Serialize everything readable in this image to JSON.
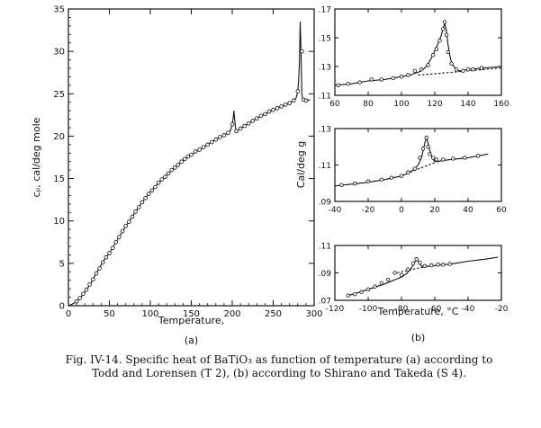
{
  "chart_data": [
    {
      "type": "line",
      "panel_label": "(a)",
      "xlabel": "Temperature,",
      "ylabel": "cₚ, cal/deg mole",
      "xlim": [
        0,
        300
      ],
      "ylim": [
        0,
        35
      ],
      "xticks": [
        0,
        50,
        100,
        150,
        200,
        250,
        300
      ],
      "yticks": [
        0,
        5,
        10,
        15,
        20,
        25,
        30,
        35
      ],
      "grid": false,
      "series": [
        {
          "style": "curve",
          "x": [
            0,
            5,
            10,
            15,
            20,
            25,
            30,
            35,
            40,
            45,
            50,
            55,
            60,
            65,
            70,
            75,
            80,
            85,
            90,
            95,
            100,
            110,
            120,
            130,
            140,
            150,
            160,
            170,
            180,
            190,
            195,
            198,
            200,
            201,
            202,
            203,
            204,
            205,
            207,
            210,
            220,
            230,
            240,
            250,
            260,
            270,
            275,
            278,
            280,
            281,
            282,
            283,
            284,
            285,
            286,
            287,
            288,
            290,
            295
          ],
          "y": [
            0,
            0.2,
            0.5,
            1.0,
            1.6,
            2.3,
            3.1,
            4.0,
            4.8,
            5.6,
            6.2,
            7.0,
            7.8,
            8.6,
            9.4,
            10.1,
            10.8,
            11.5,
            12.2,
            12.8,
            13.4,
            14.5,
            15.4,
            16.3,
            17.1,
            17.8,
            18.4,
            19.0,
            19.6,
            20.1,
            20.4,
            20.7,
            21.4,
            22.0,
            23.0,
            22.0,
            21.0,
            20.6,
            20.7,
            20.9,
            21.5,
            22.1,
            22.6,
            23.1,
            23.5,
            23.9,
            24.2,
            24.5,
            25.3,
            26.5,
            28.5,
            33.5,
            30.0,
            25.0,
            24.4,
            24.3,
            24.2,
            24.2,
            24.3
          ]
        },
        {
          "style": "points",
          "x": [
            10,
            14,
            18,
            22,
            26,
            30,
            34,
            38,
            42,
            46,
            50,
            54,
            58,
            62,
            66,
            70,
            74,
            78,
            82,
            86,
            90,
            94,
            98,
            102,
            106,
            110,
            114,
            118,
            122,
            126,
            130,
            134,
            138,
            142,
            146,
            150,
            155,
            160,
            165,
            170,
            175,
            180,
            185,
            190,
            195,
            200,
            205,
            210,
            215,
            220,
            225,
            230,
            235,
            240,
            245,
            250,
            255,
            260,
            265,
            270,
            275,
            280,
            285,
            287,
            290
          ],
          "y": [
            0.5,
            0.9,
            1.4,
            1.9,
            2.5,
            3.1,
            3.8,
            4.4,
            5.1,
            5.7,
            6.2,
            6.8,
            7.5,
            8.1,
            8.8,
            9.4,
            9.9,
            10.5,
            11.1,
            11.6,
            12.2,
            12.7,
            13.2,
            13.6,
            14.0,
            14.5,
            14.9,
            15.2,
            15.6,
            16.0,
            16.3,
            16.6,
            17.0,
            17.3,
            17.6,
            17.8,
            18.2,
            18.4,
            18.7,
            19.0,
            19.3,
            19.6,
            19.9,
            20.1,
            20.4,
            21.4,
            20.6,
            20.9,
            21.2,
            21.5,
            21.8,
            22.1,
            22.4,
            22.6,
            22.9,
            23.1,
            23.3,
            23.5,
            23.7,
            23.9,
            24.2,
            25.3,
            30.0,
            24.3,
            24.2
          ]
        }
      ]
    },
    {
      "type": "line",
      "panel_label": "",
      "xlabel": "",
      "ylabel": "",
      "xlim": [
        60,
        160
      ],
      "ylim": [
        0.11,
        0.17
      ],
      "xticks": [
        60,
        80,
        100,
        120,
        140,
        160
      ],
      "yticks": [
        0.11,
        0.13,
        0.15,
        0.17
      ],
      "grid": false,
      "series": [
        {
          "style": "curve",
          "x": [
            60,
            70,
            80,
            90,
            100,
            105,
            110,
            112,
            114,
            116,
            118,
            120,
            122,
            124,
            125,
            126,
            127,
            128,
            129,
            130,
            132,
            134,
            136,
            140,
            150,
            160
          ],
          "y": [
            0.117,
            0.118,
            0.12,
            0.121,
            0.123,
            0.124,
            0.126,
            0.127,
            0.129,
            0.132,
            0.136,
            0.141,
            0.146,
            0.152,
            0.157,
            0.16,
            0.155,
            0.145,
            0.138,
            0.133,
            0.129,
            0.127,
            0.127,
            0.128,
            0.129,
            0.13
          ]
        },
        {
          "style": "dashed",
          "x": [
            110,
            160
          ],
          "y": [
            0.124,
            0.129
          ]
        },
        {
          "style": "points",
          "x": [
            62,
            68,
            75,
            82,
            88,
            95,
            100,
            104,
            108,
            112,
            116,
            119,
            121,
            123,
            125,
            126,
            127,
            128,
            130,
            133,
            137,
            140,
            143,
            148
          ],
          "y": [
            0.117,
            0.118,
            0.119,
            0.121,
            0.121,
            0.122,
            0.123,
            0.124,
            0.127,
            0.128,
            0.131,
            0.138,
            0.142,
            0.148,
            0.156,
            0.161,
            0.152,
            0.14,
            0.132,
            0.128,
            0.127,
            0.128,
            0.128,
            0.129
          ]
        }
      ]
    },
    {
      "type": "line",
      "panel_label": "",
      "xlabel": "",
      "ylabel": "Cal/deg g",
      "xlim": [
        -40,
        60
      ],
      "ylim": [
        0.09,
        0.13
      ],
      "xticks": [
        -40,
        -20,
        0,
        20,
        40,
        60
      ],
      "yticks": [
        0.09,
        0.11,
        0.13
      ],
      "grid": false,
      "series": [
        {
          "style": "curve",
          "x": [
            -40,
            -30,
            -20,
            -10,
            0,
            5,
            8,
            10,
            12,
            13,
            14,
            15,
            16,
            17,
            18,
            19,
            20,
            22,
            25,
            30,
            40,
            52
          ],
          "y": [
            0.0985,
            0.0995,
            0.1005,
            0.102,
            0.104,
            0.106,
            0.108,
            0.11,
            0.114,
            0.118,
            0.122,
            0.125,
            0.122,
            0.118,
            0.115,
            0.113,
            0.112,
            0.112,
            0.1125,
            0.113,
            0.114,
            0.116
          ]
        },
        {
          "style": "dashed",
          "x": [
            5,
            22
          ],
          "y": [
            0.106,
            0.112
          ]
        },
        {
          "style": "points",
          "x": [
            -36,
            -28,
            -20,
            -12,
            -6,
            0,
            4,
            8,
            11,
            13,
            15,
            16,
            17,
            19,
            21,
            25,
            31,
            38,
            46
          ],
          "y": [
            0.099,
            0.0998,
            0.101,
            0.102,
            0.103,
            0.104,
            0.106,
            0.108,
            0.114,
            0.119,
            0.125,
            0.12,
            0.116,
            0.114,
            0.113,
            0.113,
            0.1135,
            0.114,
            0.115
          ]
        }
      ]
    },
    {
      "type": "line",
      "panel_label": "(b)",
      "xlabel": "Temperature, °C",
      "ylabel": "",
      "xlim": [
        -120,
        -20
      ],
      "ylim": [
        0.07,
        0.11
      ],
      "xticks": [
        -120,
        -100,
        -80,
        -60,
        -40,
        -20
      ],
      "yticks": [
        0.07,
        0.09,
        0.11
      ],
      "grid": false,
      "series": [
        {
          "style": "curve",
          "x": [
            -112,
            -105,
            -100,
            -95,
            -90,
            -85,
            -80,
            -77,
            -75,
            -73,
            -72,
            -71,
            -70,
            -69,
            -68,
            -66,
            -63,
            -58,
            -50,
            -40,
            -30,
            -22
          ],
          "y": [
            0.0735,
            0.076,
            0.078,
            0.08,
            0.082,
            0.0845,
            0.087,
            0.0895,
            0.092,
            0.0955,
            0.098,
            0.0995,
            0.0985,
            0.0965,
            0.095,
            0.0945,
            0.095,
            0.0955,
            0.0965,
            0.0985,
            0.1,
            0.1015
          ]
        },
        {
          "style": "dashed",
          "x": [
            -85,
            -66
          ],
          "y": [
            0.0895,
            0.0945
          ]
        },
        {
          "style": "points",
          "x": [
            -112,
            -108,
            -104,
            -100,
            -96,
            -92,
            -88,
            -84,
            -80,
            -76,
            -73,
            -71,
            -69,
            -66,
            -62,
            -58,
            -55,
            -51
          ],
          "y": [
            0.0735,
            0.0745,
            0.076,
            0.078,
            0.08,
            0.0825,
            0.085,
            0.09,
            0.0885,
            0.0925,
            0.097,
            0.1,
            0.0975,
            0.095,
            0.0955,
            0.096,
            0.096,
            0.0965
          ]
        }
      ]
    }
  ],
  "caption": {
    "line1": "Fig. IV-14. Specific heat of BaTiO₃ as function of temperature (a) according to",
    "line2": "Todd and Lorensen (T 2), (b) according to Shirano and Takeda (S 4)."
  }
}
